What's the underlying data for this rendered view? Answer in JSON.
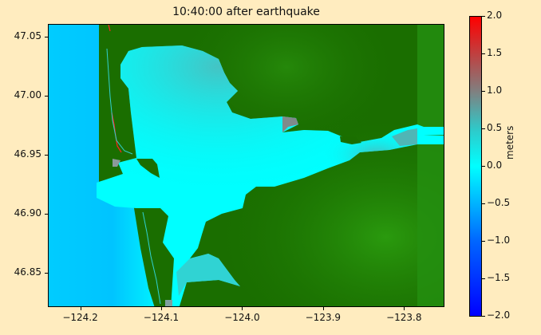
{
  "chart_data": {
    "type": "heatmap",
    "title": "10:40:00 after earthquake",
    "xlabel": "",
    "ylabel": "",
    "xlim": [
      -124.24,
      -123.75
    ],
    "ylim": [
      46.821,
      47.061
    ],
    "xticks": [
      -124.2,
      -124.1,
      -124.0,
      -123.9,
      -123.8
    ],
    "xtick_labels": [
      "−124.2",
      "−124.1",
      "−124.0",
      "−123.9",
      "−123.8"
    ],
    "yticks": [
      47.05,
      47.0,
      46.95,
      46.9,
      46.85
    ],
    "ytick_labels": [
      "47.05",
      "47.00",
      "46.95",
      "46.90",
      "46.85"
    ],
    "grid": false,
    "colorbar": {
      "label": "meters",
      "range": [
        -2.0,
        2.0
      ],
      "ticks": [
        2.0,
        1.5,
        1.0,
        0.5,
        0.0,
        -0.5,
        -1.0,
        -1.5,
        -2.0
      ],
      "tick_labels": [
        "2.0",
        "1.5",
        "1.0",
        "0.5",
        "0.0",
        "−0.5",
        "−1.0",
        "−1.5",
        "−2.0"
      ],
      "colors": {
        "-2.0": "#0000ff",
        "-1.0": "#0066ff",
        "0.0": "#00ffff",
        "0.5": "#30c8c8",
        "1.0": "#808080",
        "2.0": "#ff0000"
      }
    },
    "land_colors": [
      "#1a6e00",
      "#2a9a0e"
    ],
    "background_color": "#ffecbf"
  }
}
